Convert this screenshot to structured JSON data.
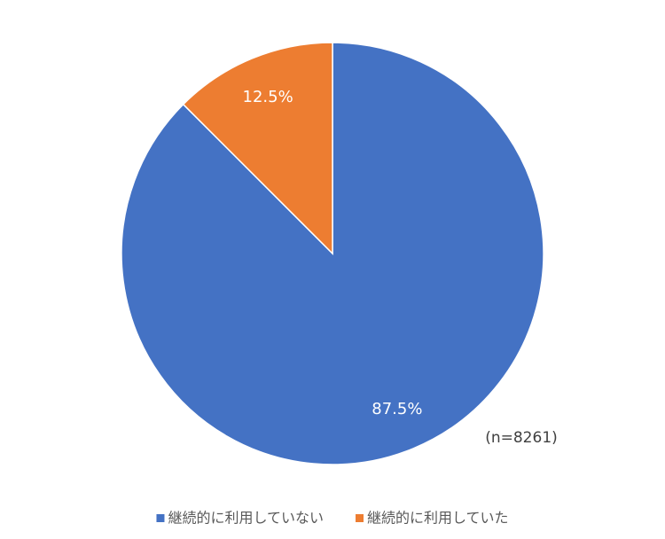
{
  "chart_data": {
    "type": "pie",
    "categories": [
      "継続的に利用していない",
      "継続的に利用していた"
    ],
    "values": [
      87.5,
      12.5
    ],
    "value_labels": [
      "87.5%",
      "12.5%"
    ],
    "colors": [
      "#4472c4",
      "#ed7d31"
    ],
    "annotation": "(n=8261)",
    "legend": "bottom"
  }
}
